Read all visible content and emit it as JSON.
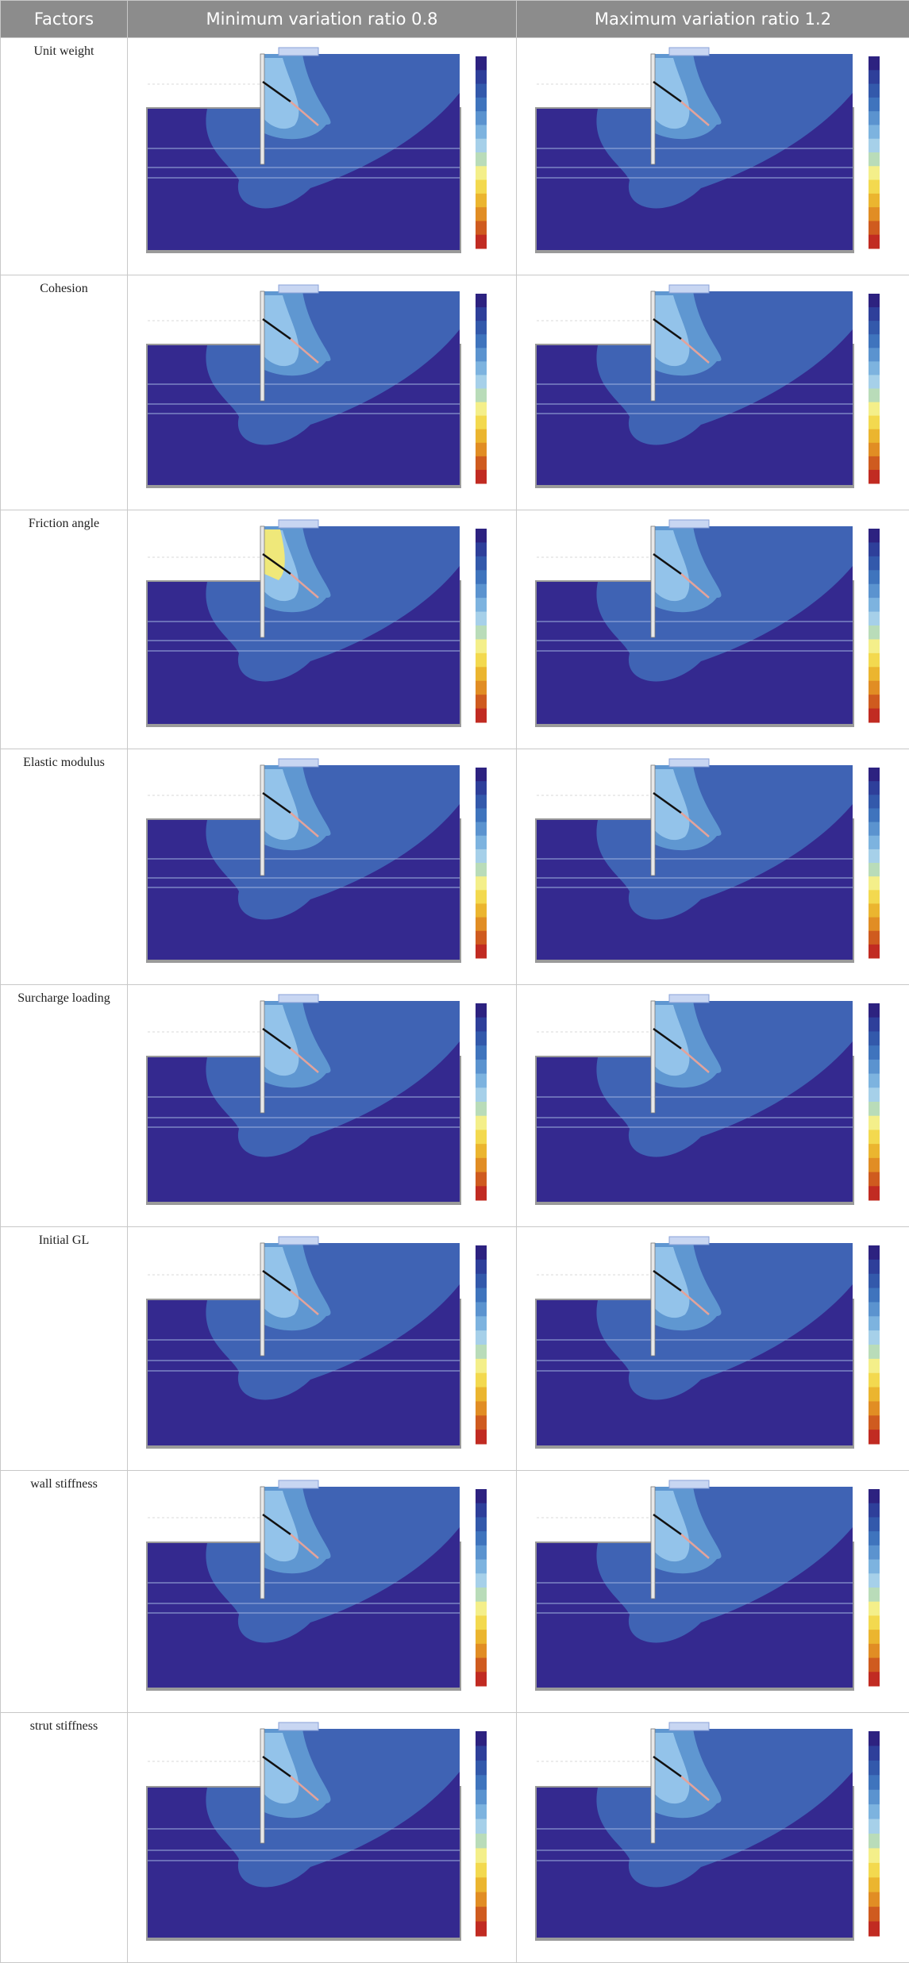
{
  "table": {
    "headers": [
      "Factors",
      "Minimum variation ratio 0.8",
      "Maximum variation ratio 1.2"
    ],
    "rows": [
      {
        "factor": "Unit weight"
      },
      {
        "factor": "Cohesion"
      },
      {
        "factor": "Friction angle"
      },
      {
        "factor": "Elastic modulus"
      },
      {
        "factor": "Surcharge loading"
      },
      {
        "factor": "Initial GL"
      },
      {
        "factor": "wall stiffness"
      },
      {
        "factor": "strut stiffness"
      }
    ]
  },
  "colors": {
    "header_bg": "#8c8c8c",
    "ground_dark": "#34298f",
    "contour_mid": "#3f63b4",
    "contour_light": "#5f97d1",
    "contour_pale": "#93c3ea",
    "highlight_yellow": "#efe87a",
    "strut": "#e3a39b",
    "legend": [
      "#2d2280",
      "#2e3f9a",
      "#3359ab",
      "#3f74bd",
      "#5b93cf",
      "#7db3df",
      "#a6d0e9",
      "#b9dcb9",
      "#f4ef8a",
      "#f3d94f",
      "#ebb52f",
      "#e18d24",
      "#cf5b1f",
      "#c12b22"
    ]
  }
}
